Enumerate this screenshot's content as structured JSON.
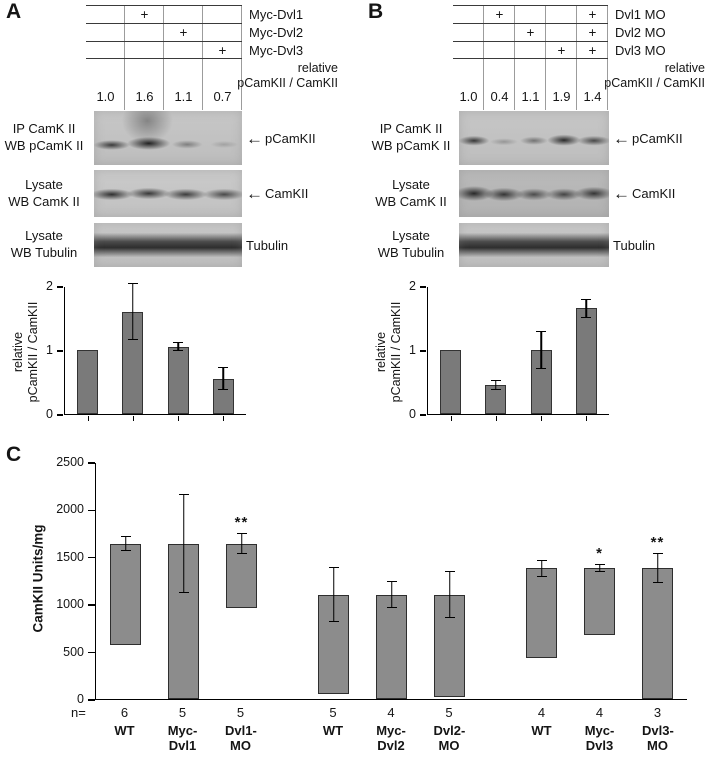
{
  "icons": {
    "left_arrow": "←"
  },
  "panelA": {
    "label": "A",
    "plus_symbol": "+",
    "lanes": 4,
    "rows": [
      {
        "label": "Myc-Dvl1",
        "plus_lanes": [
          2
        ]
      },
      {
        "label": "Myc-Dvl2",
        "plus_lanes": [
          3
        ]
      },
      {
        "label": "Myc-Dvl3",
        "plus_lanes": [
          4
        ]
      }
    ],
    "ratio_label": "relative\npCamKII / CamKII",
    "ratio_values": [
      "1.0",
      "1.6",
      "1.1",
      "0.7"
    ],
    "blots": [
      {
        "label": "IP CamK II\nWB pCamK II",
        "marker": "pCamKII",
        "arrow": true
      },
      {
        "label": "Lysate\nWB CamK II",
        "marker": "CamKII",
        "arrow": true
      },
      {
        "label": "Lysate\nWB Tubulin",
        "marker": "Tubulin",
        "arrow": false
      }
    ]
  },
  "panelB": {
    "label": "B",
    "plus_symbol": "+",
    "lanes": 5,
    "rows": [
      {
        "label": "Dvl1 MO",
        "plus_lanes": [
          2,
          5
        ]
      },
      {
        "label": "Dvl2 MO",
        "plus_lanes": [
          3,
          5
        ]
      },
      {
        "label": "Dvl3 MO",
        "plus_lanes": [
          4,
          5
        ]
      }
    ],
    "ratio_label": "relative\npCamKII / CamKII",
    "ratio_values": [
      "1.0",
      "0.4",
      "1.1",
      "1.9",
      "1.4"
    ],
    "blots": [
      {
        "label": "IP CamK II\nWB pCamK II",
        "marker": "pCamKII",
        "arrow": true
      },
      {
        "label": "Lysate\nWB CamK II",
        "marker": "CamKII",
        "arrow": true
      },
      {
        "label": "Lysate\nWB Tubulin",
        "marker": "Tubulin",
        "arrow": false
      }
    ]
  },
  "panelC": {
    "label": "C"
  },
  "chart_data": [
    {
      "panel": "A",
      "type": "bar",
      "ylabel": "relative\npCamKII / CamKII",
      "ylim": [
        0,
        2
      ],
      "yticks": [
        0,
        1,
        2
      ],
      "values": [
        1.0,
        1.6,
        1.05,
        0.55
      ],
      "errors": [
        0,
        0.45,
        0.07,
        0.18
      ],
      "bar_color": "#7a7a7a",
      "grid": false
    },
    {
      "panel": "B",
      "type": "bar",
      "ylabel": "relative\npCamKII / CamKII",
      "ylim": [
        0,
        2
      ],
      "yticks": [
        0,
        1,
        2
      ],
      "values": [
        1.0,
        0.45,
        1.0,
        1.65
      ],
      "errors": [
        0,
        0.08,
        0.3,
        0.15
      ],
      "bar_color": "#7a7a7a",
      "grid": false
    },
    {
      "panel": "C",
      "type": "bar",
      "ylabel": "CamKII Units/mg",
      "ylim": [
        0,
        2500
      ],
      "yticks": [
        0,
        500,
        1000,
        1500,
        2000,
        2500
      ],
      "categories": [
        "WT",
        "Myc-Dvl1",
        "Dvl1-MO",
        "WT",
        "Myc-Dvl2",
        "Dvl2-MO",
        "WT",
        "Myc-Dvl3",
        "Dvl3-MO"
      ],
      "categories_display": [
        "WT",
        "Myc-\nDvl1",
        "Dvl1-\nMO",
        "WT",
        "Myc-\nDvl2",
        "Dvl2-\nMO",
        "WT",
        "Myc-\nDvl3",
        "Dvl3-\nMO"
      ],
      "values": [
        1075,
        1640,
        680,
        1050,
        1100,
        1080,
        950,
        710,
        1380
      ],
      "errors": [
        75,
        520,
        110,
        290,
        140,
        250,
        90,
        40,
        160
      ],
      "n": [
        "6",
        "5",
        "5",
        "5",
        "4",
        "5",
        "4",
        "4",
        "3"
      ],
      "n_prefix": "n=",
      "significance": [
        "",
        "",
        "**",
        "",
        "",
        "",
        "",
        "*",
        "**"
      ],
      "groups": [
        [
          0,
          1,
          2
        ],
        [
          3,
          4,
          5
        ],
        [
          6,
          7,
          8
        ]
      ],
      "bar_color": "#8c8c8c",
      "grid": false
    }
  ]
}
